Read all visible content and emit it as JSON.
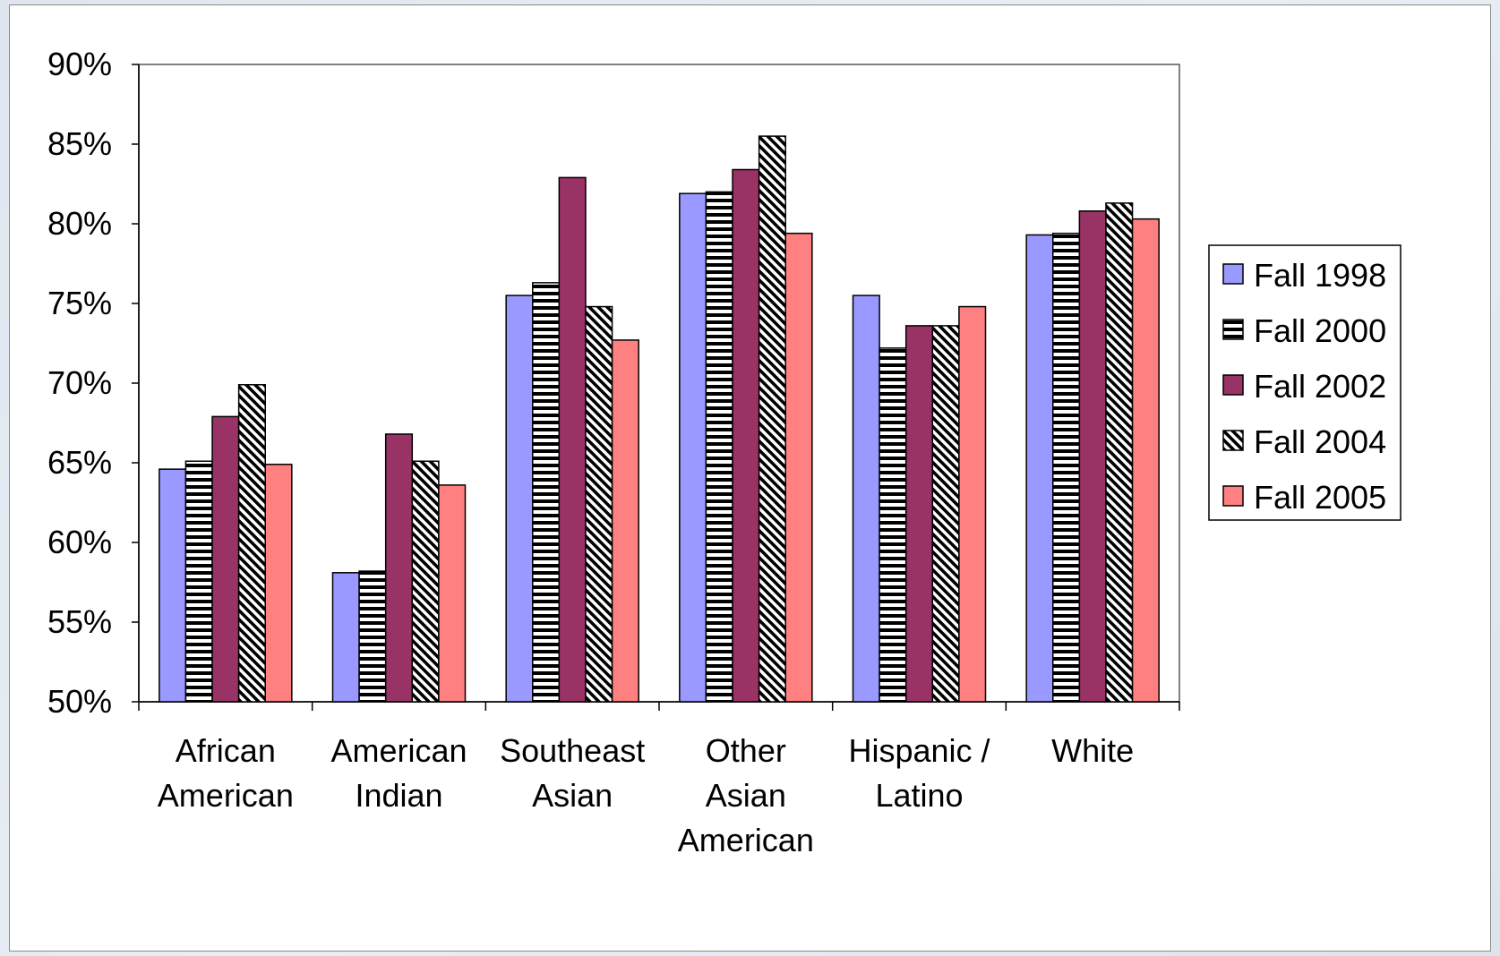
{
  "chart_data": {
    "type": "bar",
    "title": "",
    "xlabel": "",
    "ylabel": "",
    "ylim": [
      0.5,
      0.9
    ],
    "yticks": [
      0.5,
      0.55,
      0.6,
      0.65,
      0.7,
      0.75,
      0.8,
      0.85,
      0.9
    ],
    "ytick_labels": [
      "50%",
      "55%",
      "60%",
      "65%",
      "70%",
      "75%",
      "80%",
      "85%",
      "90%"
    ],
    "categories": [
      [
        "African",
        "American"
      ],
      [
        "American",
        "Indian"
      ],
      [
        "Southeast",
        "Asian"
      ],
      [
        "Other",
        "Asian",
        "American"
      ],
      [
        "Hispanic /",
        "Latino"
      ],
      [
        "White"
      ]
    ],
    "series": [
      {
        "name": "Fall 1998",
        "color": "#9999ff",
        "pattern": "solid",
        "values": [
          0.646,
          0.581,
          0.755,
          0.819,
          0.755,
          0.793
        ]
      },
      {
        "name": "Fall 2000",
        "color": "#ffffff",
        "pattern": "horizontal-stripes",
        "values": [
          0.651,
          0.582,
          0.763,
          0.82,
          0.722,
          0.794
        ]
      },
      {
        "name": "Fall 2002",
        "color": "#993366",
        "pattern": "solid",
        "values": [
          0.679,
          0.668,
          0.829,
          0.834,
          0.736,
          0.808
        ]
      },
      {
        "name": "Fall 2004",
        "color": "#ffffff",
        "pattern": "diagonal-stripes",
        "values": [
          0.699,
          0.651,
          0.748,
          0.855,
          0.736,
          0.813
        ]
      },
      {
        "name": "Fall 2005",
        "color": "#ff8080",
        "pattern": "solid",
        "values": [
          0.649,
          0.636,
          0.727,
          0.794,
          0.748,
          0.803
        ]
      }
    ],
    "grid": false,
    "legend_position": "right"
  }
}
